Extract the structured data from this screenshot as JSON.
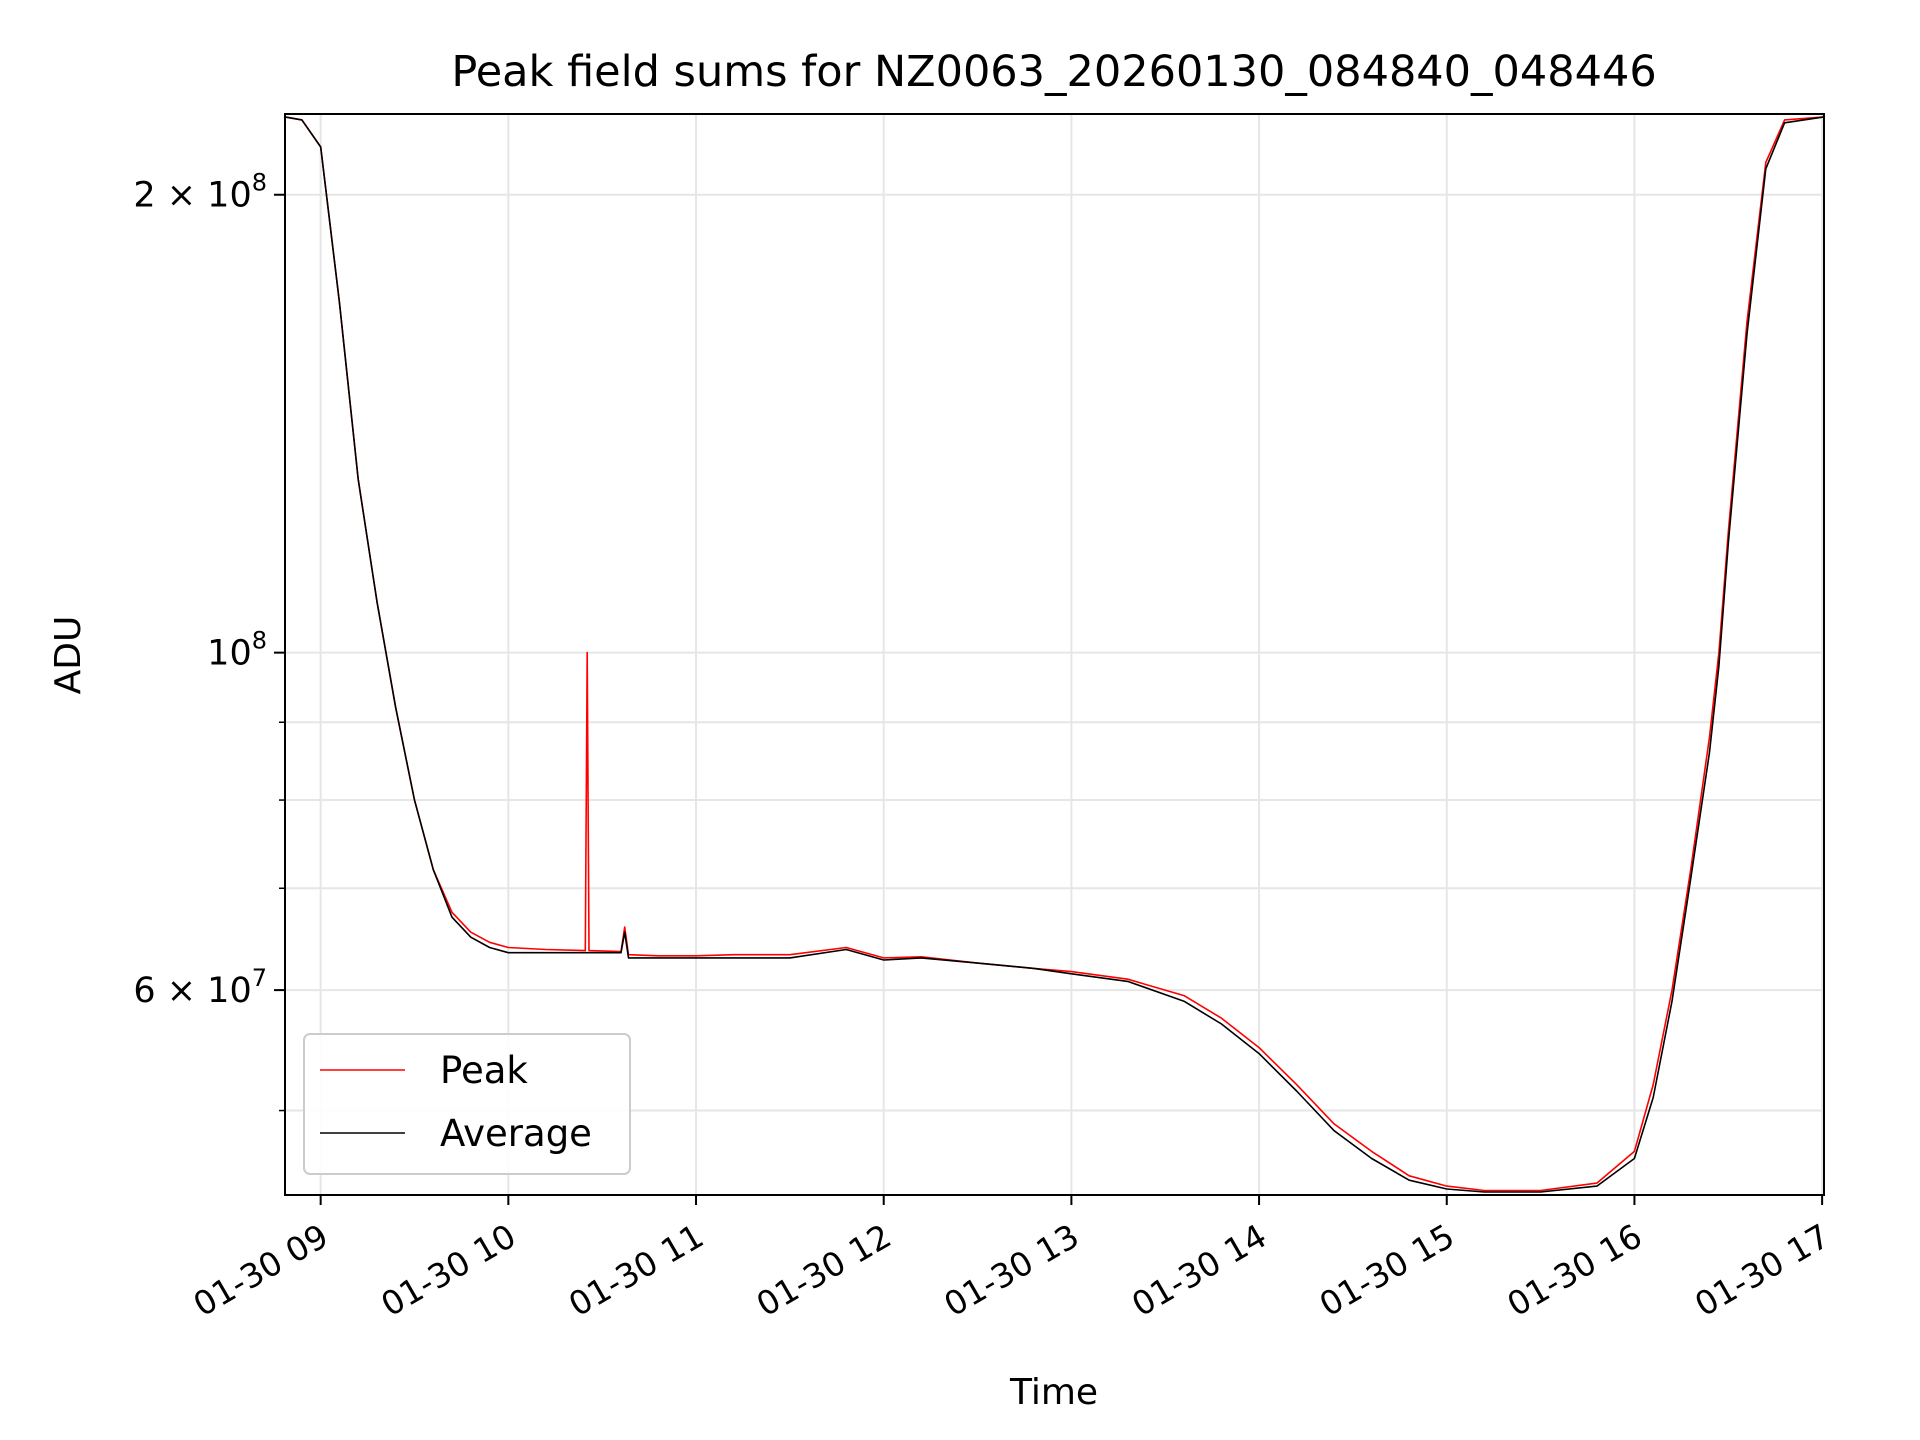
{
  "chart_data": {
    "type": "line",
    "title": "Peak field sums for NZ0063_20260130_084840_048446",
    "xlabel": "Time",
    "ylabel": "ADU",
    "yscale": "log",
    "ylim": [
      44000000,
      226000000
    ],
    "xlim_hours": [
      8.81,
      17.01
    ],
    "grid": true,
    "legend_location": "lower left",
    "x_ticks": [
      "01-30 09",
      "01-30 10",
      "01-30 11",
      "01-30 12",
      "01-30 13",
      "01-30 14",
      "01-30 15",
      "01-30 16",
      "01-30 17"
    ],
    "y_tick_labels": [
      {
        "value": 200000000,
        "base": "2 × 10",
        "exp": "8"
      },
      {
        "value": 100000000,
        "base": "10",
        "exp": "8"
      },
      {
        "value": 60000000,
        "base": "6 × 10",
        "exp": "7"
      }
    ],
    "y_minor_ticks": [
      40000000,
      50000000,
      60000000,
      70000000,
      80000000,
      90000000,
      200000000
    ],
    "series": [
      {
        "name": "Peak",
        "color": "#ff0000",
        "x_hours": [
          8.81,
          8.9,
          9.0,
          9.1,
          9.2,
          9.3,
          9.4,
          9.5,
          9.6,
          9.7,
          9.8,
          9.9,
          10.0,
          10.2,
          10.41,
          10.42,
          10.43,
          10.6,
          10.62,
          10.64,
          10.8,
          11.0,
          11.2,
          11.5,
          11.8,
          12.0,
          12.2,
          12.5,
          12.8,
          13.0,
          13.3,
          13.6,
          13.8,
          14.0,
          14.2,
          14.4,
          14.6,
          14.8,
          15.0,
          15.2,
          15.5,
          15.8,
          16.0,
          16.1,
          16.2,
          16.3,
          16.4,
          16.45,
          16.5,
          16.6,
          16.7,
          16.8,
          17.01
        ],
        "y": [
          225000000,
          224000000,
          215000000,
          170000000,
          130000000,
          108000000,
          92000000,
          80000000,
          72000000,
          67500000,
          65500000,
          64500000,
          64000000,
          63800000,
          63700000,
          100000000,
          63700000,
          63600000,
          66000000,
          63300000,
          63200000,
          63200000,
          63300000,
          63300000,
          64000000,
          63000000,
          63100000,
          62500000,
          62000000,
          61700000,
          61000000,
          59500000,
          57500000,
          55000000,
          52000000,
          49000000,
          47000000,
          45300000,
          44600000,
          44300000,
          44300000,
          44800000,
          47000000,
          52000000,
          60000000,
          72000000,
          88000000,
          100000000,
          120000000,
          165000000,
          210000000,
          224000000,
          225000000
        ]
      },
      {
        "name": "Average",
        "color": "#000000",
        "x_hours": [
          8.81,
          8.9,
          9.0,
          9.1,
          9.2,
          9.3,
          9.4,
          9.5,
          9.6,
          9.7,
          9.8,
          9.9,
          10.0,
          10.2,
          10.4,
          10.6,
          10.62,
          10.64,
          10.8,
          11.0,
          11.2,
          11.5,
          11.8,
          12.0,
          12.2,
          12.5,
          12.8,
          13.0,
          13.3,
          13.6,
          13.8,
          14.0,
          14.2,
          14.4,
          14.6,
          14.8,
          15.0,
          15.2,
          15.5,
          15.8,
          16.0,
          16.1,
          16.2,
          16.3,
          16.4,
          16.45,
          16.5,
          16.6,
          16.7,
          16.8,
          17.01
        ],
        "y": [
          225000000,
          224000000,
          215000000,
          170000000,
          130000000,
          108000000,
          92000000,
          80000000,
          72000000,
          67000000,
          65000000,
          64000000,
          63500000,
          63500000,
          63500000,
          63500000,
          65500000,
          63000000,
          63000000,
          63000000,
          63000000,
          63000000,
          63800000,
          62800000,
          63000000,
          62500000,
          62000000,
          61500000,
          60800000,
          59000000,
          57000000,
          54500000,
          51500000,
          48500000,
          46500000,
          45000000,
          44400000,
          44200000,
          44200000,
          44600000,
          46500000,
          51000000,
          59000000,
          71000000,
          86000000,
          98000000,
          118000000,
          162000000,
          208000000,
          223000000,
          225000000
        ]
      }
    ]
  }
}
